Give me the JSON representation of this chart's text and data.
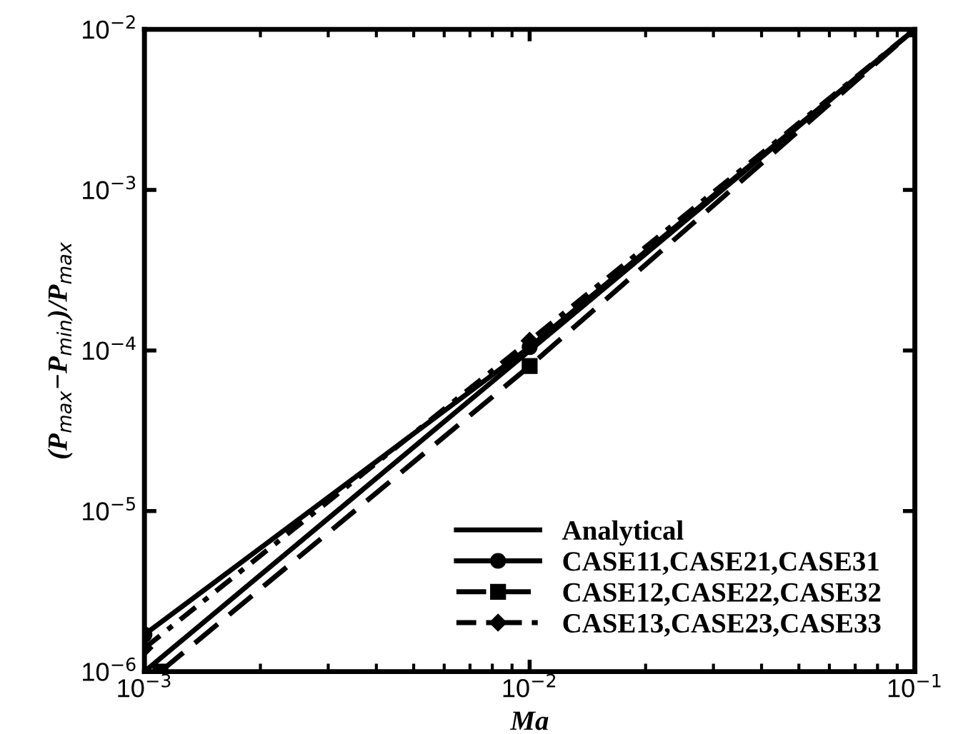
{
  "chart_data": {
    "type": "line",
    "xlabel": "Ma",
    "ylabel": "(P$_{max}$−P$_{min}$)/P$_{max}$",
    "log": "xy",
    "xlim": [
      0.001,
      0.1
    ],
    "ylim": [
      1e-06,
      0.01
    ],
    "xticks": [
      {
        "value": 0.001,
        "label": "10$^{−3}$"
      },
      {
        "value": 0.01,
        "label": "10$^{−2}$"
      },
      {
        "value": 0.1,
        "label": "10$^{−1}$"
      }
    ],
    "yticks": [
      {
        "value": 1e-06,
        "label": "10$^{−6}$"
      },
      {
        "value": 1e-05,
        "label": "10$^{−5}$"
      },
      {
        "value": 0.0001,
        "label": "10$^{−4}$"
      },
      {
        "value": 0.001,
        "label": "10$^{−3}$"
      },
      {
        "value": 0.01,
        "label": "10$^{−2}$"
      }
    ],
    "grid": false,
    "legend": "bottom right",
    "series": [
      {
        "name": "Analytical",
        "color": "#000000",
        "x": [
          0.001,
          0.1
        ],
        "values": [
          1e-06,
          0.01
        ],
        "line_style": "solid"
      },
      {
        "name": "CASE11,CASE21,CASE31",
        "color": "#000000",
        "x": [
          0.001,
          0.01,
          0.1
        ],
        "values": [
          1.7e-06,
          0.000105,
          0.01
        ],
        "marker": "circle",
        "line_style": "solid"
      },
      {
        "name": "CASE12,CASE22,CASE32",
        "color": "#000000",
        "x": [
          0.0011,
          0.01,
          0.1
        ],
        "values": [
          1e-06,
          8e-05,
          0.01
        ],
        "marker": "square",
        "line_style": "dashed"
      },
      {
        "name": "CASE13,CASE23,CASE33",
        "color": "#000000",
        "x": [
          0.001,
          0.01,
          0.1
        ],
        "values": [
          1.4e-06,
          0.000115,
          0.01
        ],
        "marker": "diamond",
        "line_style": "dashdot"
      }
    ]
  }
}
